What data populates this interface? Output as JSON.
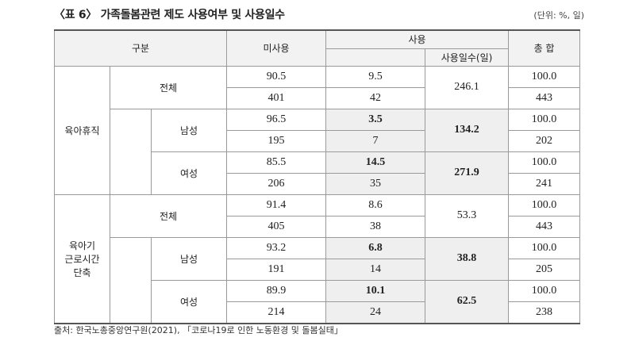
{
  "title": "〈표 6〉 가족돌봄관련 제도 사용여부 및 사용일수",
  "unit": "(단위: %, 일)",
  "headers": {
    "category": "구분",
    "unused": "미사용",
    "used": "사용",
    "used_days": "사용일수(일)",
    "total": "총 합"
  },
  "groups": [
    {
      "name": "육아휴직",
      "rows": [
        {
          "label": "전체",
          "unused_pct": "90.5",
          "unused_n": "401",
          "used_pct": "9.5",
          "used_n": "42",
          "days": "246.1",
          "total_pct": "100.0",
          "total_n": "443"
        },
        {
          "label": "남성",
          "unused_pct": "96.5",
          "unused_n": "195",
          "used_pct": "3.5",
          "used_n": "7",
          "days": "134.2",
          "total_pct": "100.0",
          "total_n": "202"
        },
        {
          "label": "여성",
          "unused_pct": "85.5",
          "unused_n": "206",
          "used_pct": "14.5",
          "used_n": "35",
          "days": "271.9",
          "total_pct": "100.0",
          "total_n": "241"
        }
      ]
    },
    {
      "name_lines": [
        "육아기",
        "근로시간",
        "단축"
      ],
      "rows": [
        {
          "label": "전체",
          "unused_pct": "91.4",
          "unused_n": "405",
          "used_pct": "8.6",
          "used_n": "38",
          "days": "53.3",
          "total_pct": "100.0",
          "total_n": "443"
        },
        {
          "label": "남성",
          "unused_pct": "93.2",
          "unused_n": "191",
          "used_pct": "6.8",
          "used_n": "14",
          "days": "38.8",
          "total_pct": "100.0",
          "total_n": "205"
        },
        {
          "label": "여성",
          "unused_pct": "89.9",
          "unused_n": "214",
          "used_pct": "10.1",
          "used_n": "24",
          "days": "62.5",
          "total_pct": "100.0",
          "total_n": "238"
        }
      ]
    }
  ],
  "source": "출처: 한국노총중앙연구원(2021), 「코로나19로 인한 노동환경 및 돌봄실태」"
}
